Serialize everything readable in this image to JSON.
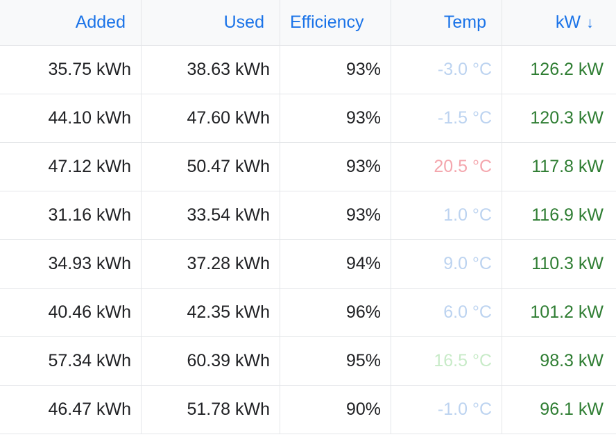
{
  "columns": {
    "added": "Added",
    "used": "Used",
    "efficiency": "Efficiency",
    "temp": "Temp",
    "kw": "kW",
    "kw_sort_arrow": "↓"
  },
  "colors": {
    "header_text": "#1a73e8",
    "kw_text": "#2e7d32",
    "temp_cold": "#bcd3f0",
    "temp_warm": "#f4a6ad",
    "temp_mild": "#c8ebc8"
  },
  "rows": [
    {
      "added": "35.75 kWh",
      "used": "38.63 kWh",
      "efficiency": "93%",
      "temp": "-3.0 °C",
      "temp_color": "#bcd3f0",
      "kw": "126.2 kW"
    },
    {
      "added": "44.10 kWh",
      "used": "47.60 kWh",
      "efficiency": "93%",
      "temp": "-1.5 °C",
      "temp_color": "#bcd3f0",
      "kw": "120.3 kW"
    },
    {
      "added": "47.12 kWh",
      "used": "50.47 kWh",
      "efficiency": "93%",
      "temp": "20.5 °C",
      "temp_color": "#f4a6ad",
      "kw": "117.8 kW"
    },
    {
      "added": "31.16 kWh",
      "used": "33.54 kWh",
      "efficiency": "93%",
      "temp": "1.0 °C",
      "temp_color": "#bcd3f0",
      "kw": "116.9 kW"
    },
    {
      "added": "34.93 kWh",
      "used": "37.28 kWh",
      "efficiency": "94%",
      "temp": "9.0 °C",
      "temp_color": "#bcd3f0",
      "kw": "110.3 kW"
    },
    {
      "added": "40.46 kWh",
      "used": "42.35 kWh",
      "efficiency": "96%",
      "temp": "6.0 °C",
      "temp_color": "#bcd3f0",
      "kw": "101.2 kW"
    },
    {
      "added": "57.34 kWh",
      "used": "60.39 kWh",
      "efficiency": "95%",
      "temp": "16.5 °C",
      "temp_color": "#c8ebc8",
      "kw": "98.3 kW"
    },
    {
      "added": "46.47 kWh",
      "used": "51.78 kWh",
      "efficiency": "90%",
      "temp": "-1.0 °C",
      "temp_color": "#bcd3f0",
      "kw": "96.1 kW"
    }
  ]
}
